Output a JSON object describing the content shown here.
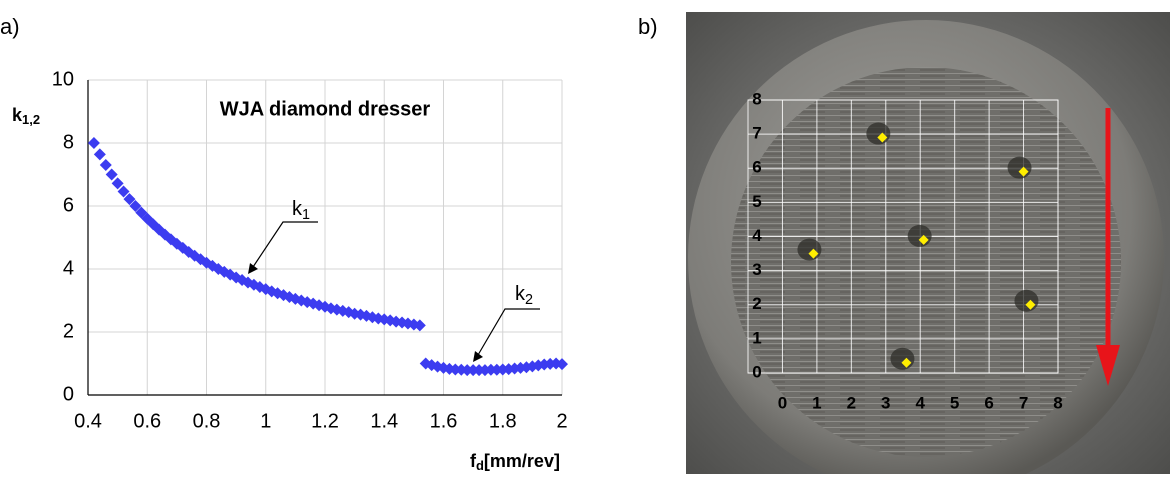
{
  "panel_labels": [
    "a)",
    "b)"
  ],
  "chart_data": [
    {
      "type": "scatter",
      "title": "WJA diamond dresser",
      "x_label": {
        "text": "f",
        "subscript": "d",
        "suffix": "[mm/rev]"
      },
      "y_label": {
        "text": "k",
        "subscript": "1,2"
      },
      "xlim": [
        0.4,
        2
      ],
      "ylim": [
        0,
        10
      ],
      "xticks": [
        0.4,
        0.6,
        0.8,
        1,
        1.2,
        1.4,
        1.6,
        1.8,
        2
      ],
      "yticks": [
        0,
        2,
        4,
        6,
        8,
        10
      ],
      "grid": true,
      "marker": "diamond",
      "series": [
        {
          "color": "#3c3cf0",
          "x": [
            0.42,
            0.44,
            0.46,
            0.48,
            0.5,
            0.52,
            0.54,
            0.56,
            0.58,
            0.6,
            0.62,
            0.64,
            0.66,
            0.68,
            0.7,
            0.72,
            0.74,
            0.76,
            0.78,
            0.8,
            0.82,
            0.84,
            0.86,
            0.88,
            0.9,
            0.92,
            0.94,
            0.96,
            0.98,
            1,
            1.02,
            1.04,
            1.06,
            1.08,
            1.1,
            1.12,
            1.14,
            1.16,
            1.18,
            1.2,
            1.22,
            1.24,
            1.26,
            1.28,
            1.3,
            1.32,
            1.34,
            1.36,
            1.38,
            1.4,
            1.42,
            1.44,
            1.46,
            1.48,
            1.5,
            1.52
          ],
          "values": [
            8,
            7.64,
            7.3,
            7,
            6.72,
            6.46,
            6.22,
            6,
            5.79,
            5.6,
            5.42,
            5.25,
            5.09,
            4.94,
            4.8,
            4.67,
            4.54,
            4.42,
            4.31,
            4.2,
            4.1,
            4,
            3.91,
            3.82,
            3.73,
            3.65,
            3.57,
            3.5,
            3.43,
            3.36,
            3.29,
            3.23,
            3.17,
            3.11,
            3.05,
            3,
            2.95,
            2.9,
            2.85,
            2.8,
            2.75,
            2.71,
            2.67,
            2.63,
            2.58,
            2.55,
            2.51,
            2.47,
            2.43,
            2.4,
            2.37,
            2.33,
            2.3,
            2.27,
            2.24,
            2.21
          ]
        },
        {
          "color": "#3c3cf0",
          "x": [
            1.54,
            1.56,
            1.58,
            1.6,
            1.62,
            1.64,
            1.66,
            1.68,
            1.7,
            1.72,
            1.74,
            1.76,
            1.78,
            1.8,
            1.82,
            1.84,
            1.86,
            1.88,
            1.9,
            1.92,
            1.94,
            1.96,
            1.98,
            2
          ],
          "values": [
            1,
            0.95,
            0.9,
            0.86,
            0.83,
            0.81,
            0.8,
            0.79,
            0.79,
            0.79,
            0.79,
            0.8,
            0.8,
            0.81,
            0.82,
            0.84,
            0.86,
            0.88,
            0.91,
            0.94,
            0.97,
            0.99,
            1,
            0.98
          ]
        }
      ],
      "annotations": [
        {
          "text": "k",
          "subscript": "1"
        },
        {
          "text": "k",
          "subscript": "2"
        }
      ]
    },
    {
      "type": "scatter",
      "xlim": [
        -1,
        8
      ],
      "ylim": [
        0,
        8
      ],
      "xticks": [
        0,
        1,
        2,
        3,
        4,
        5,
        6,
        7,
        8
      ],
      "yticks": [
        0,
        1,
        2,
        3,
        4,
        5,
        6,
        7,
        8
      ],
      "grid": true,
      "marker": "diamond",
      "series": [
        {
          "color": "#ffee00",
          "x": [
            0.9,
            2.9,
            7.0,
            4.1,
            7.2,
            3.6
          ],
          "values": [
            3.5,
            6.9,
            5.9,
            3.9,
            2.0,
            0.3
          ]
        }
      ]
    }
  ]
}
